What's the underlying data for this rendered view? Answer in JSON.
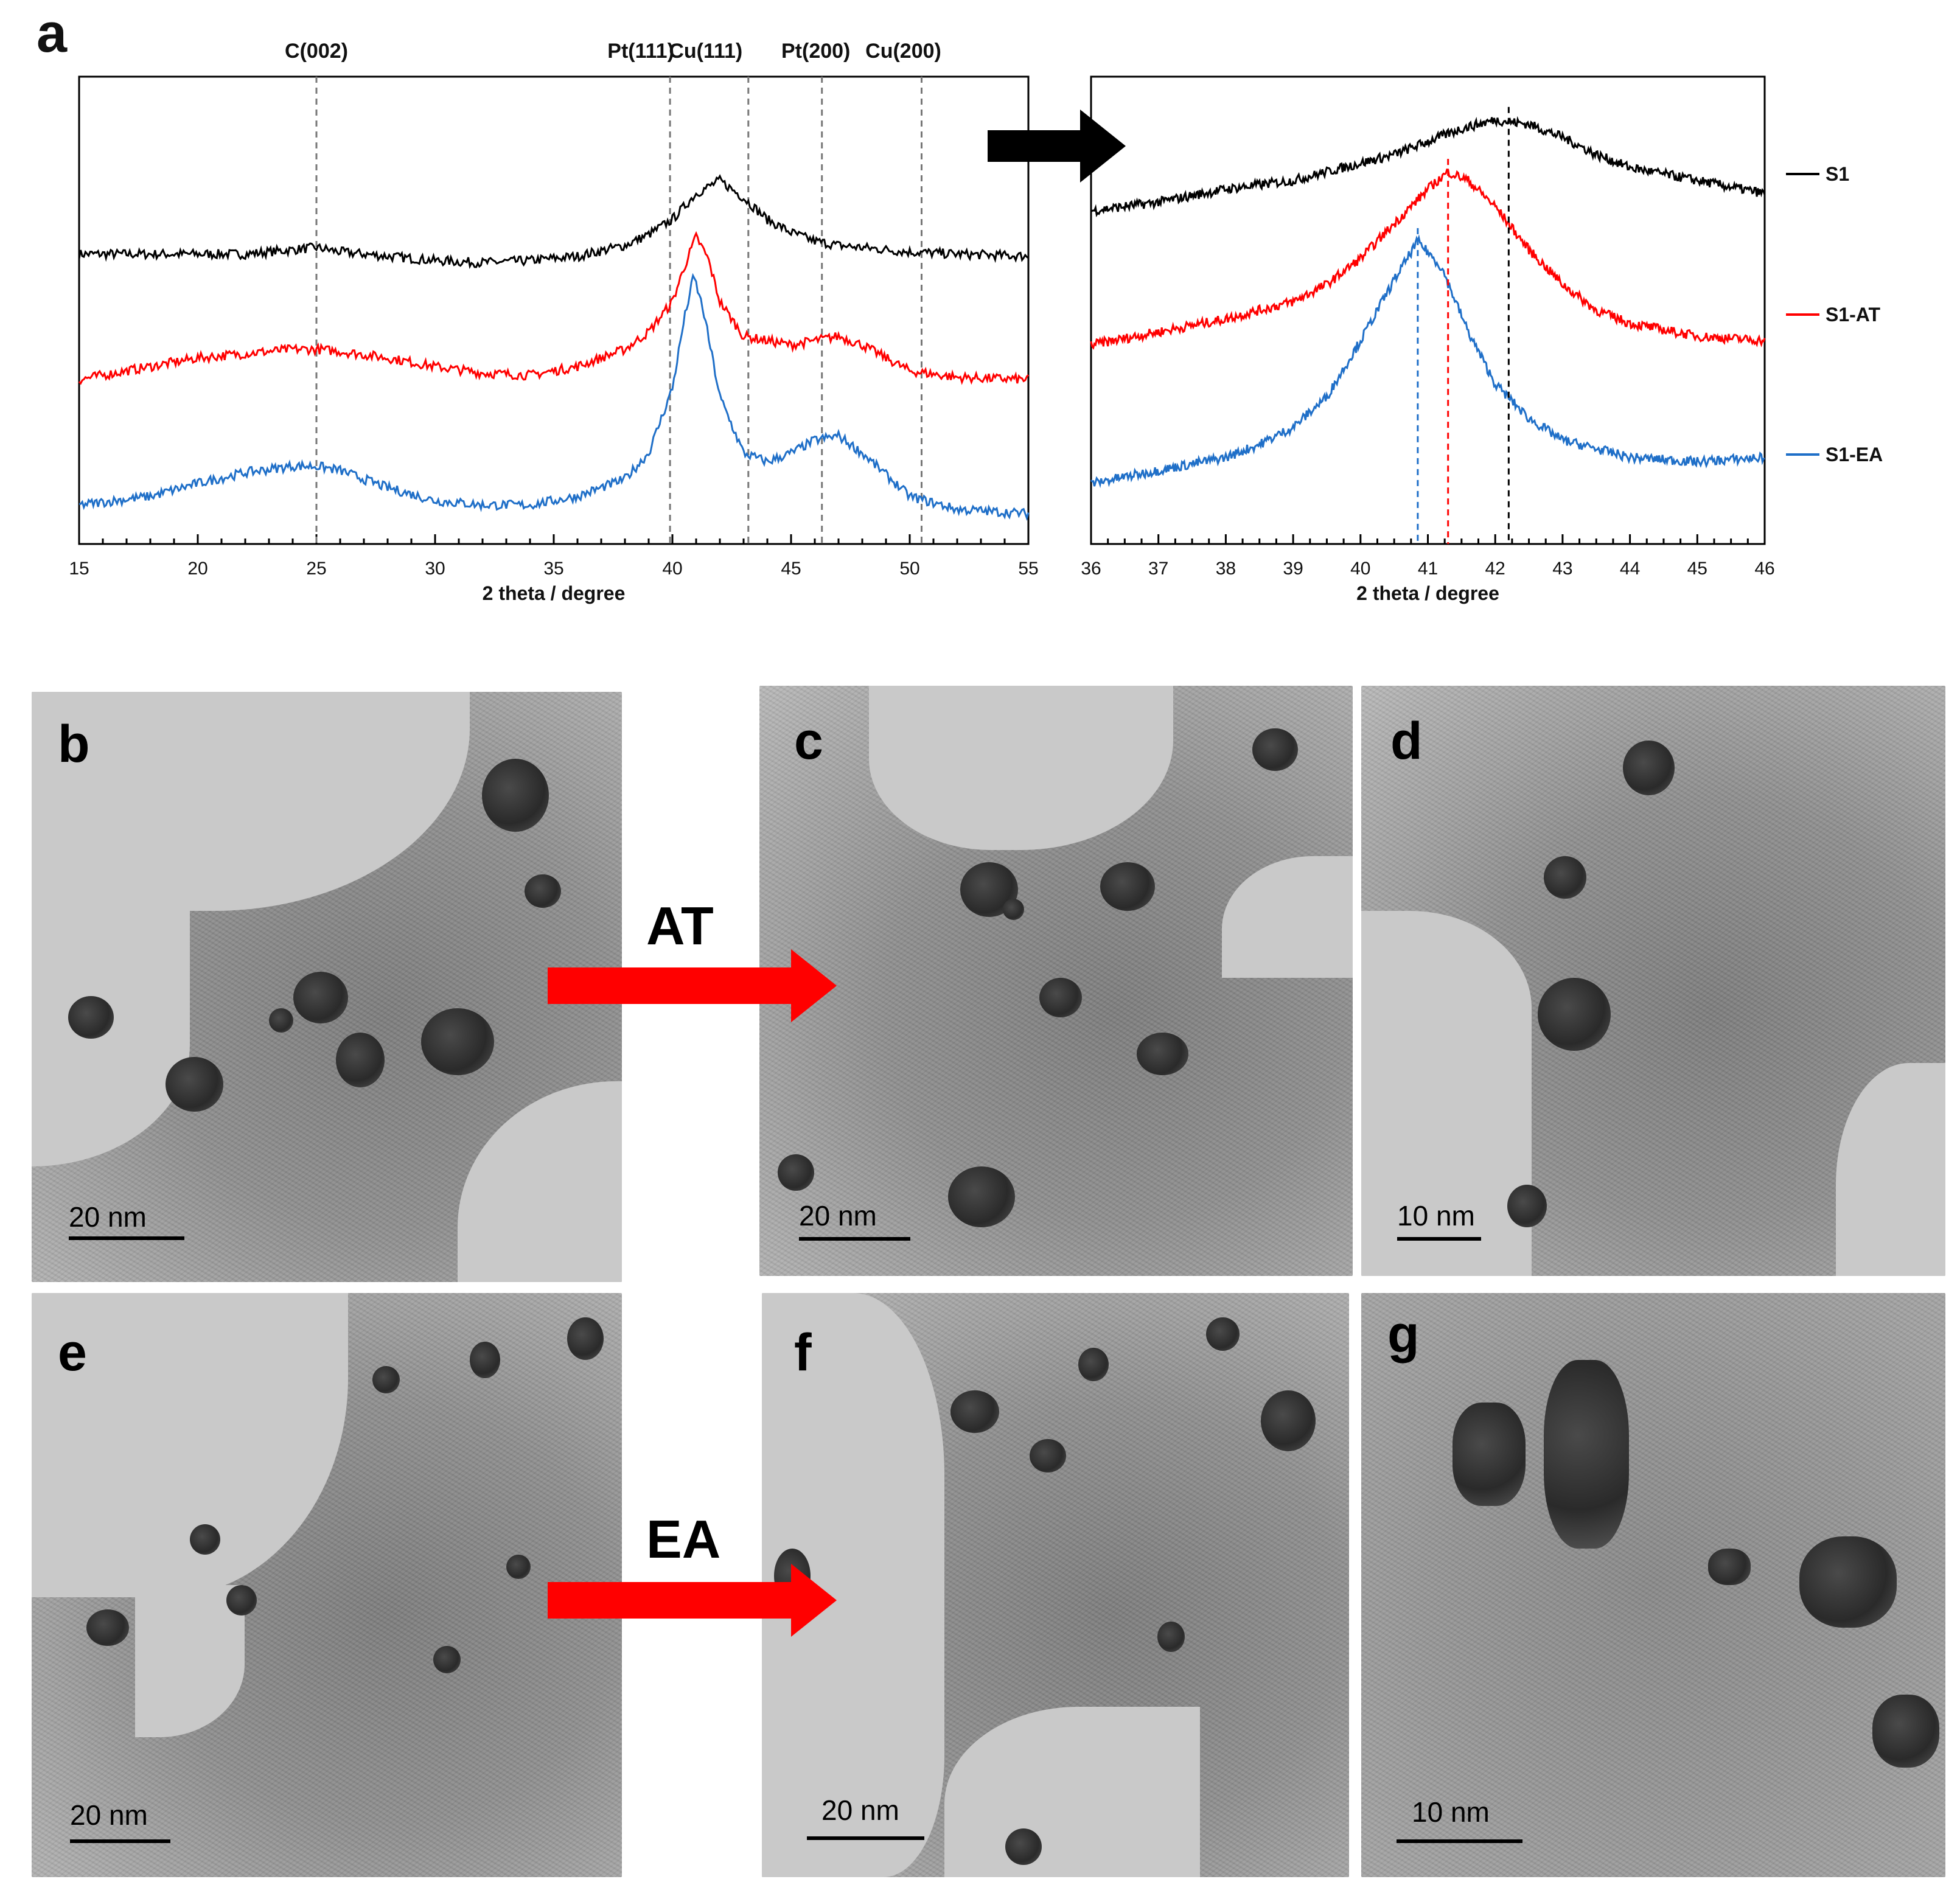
{
  "panel_labels": {
    "a": "a",
    "b": "b",
    "c": "c",
    "d": "d",
    "e": "e",
    "f": "f",
    "g": "g"
  },
  "peak_labels": [
    "C(002)",
    "Pt(111)",
    "Cu(111)",
    "Pt(200)",
    "Cu(200)"
  ],
  "processes": {
    "acid_treatment": "AT",
    "electrochemical_activation": "EA"
  },
  "colors": {
    "S1": "#000000",
    "S1-AT": "#ff0000",
    "S1-EA": "#1f6fc8",
    "ref_line": "#777777",
    "process_arrow": "#ff0000",
    "big_arrow": "#000000"
  },
  "chart_data": [
    {
      "type": "line",
      "panel": "a-left",
      "xlabel": "2 theta / degree",
      "ylabel": "",
      "xlim": [
        15,
        55
      ],
      "xticks": [
        15,
        20,
        25,
        30,
        35,
        40,
        45,
        50,
        55
      ],
      "reference_lines": [
        {
          "label": "C(002)",
          "x": 25.0
        },
        {
          "label": "Pt(111)",
          "x": 39.9
        },
        {
          "label": "Cu(111)",
          "x": 43.2
        },
        {
          "label": "Pt(200)",
          "x": 46.3
        },
        {
          "label": "Cu(200)",
          "x": 50.5
        }
      ],
      "series": [
        {
          "name": "S1",
          "x": [
            15,
            18,
            20,
            22,
            24,
            25,
            26,
            28,
            30,
            32,
            34,
            36,
            38,
            39,
            40,
            41,
            42,
            43,
            44,
            45,
            46,
            47,
            48,
            50,
            52,
            55
          ],
          "y": [
            0.63,
            0.63,
            0.63,
            0.63,
            0.64,
            0.645,
            0.635,
            0.625,
            0.615,
            0.61,
            0.615,
            0.625,
            0.65,
            0.675,
            0.71,
            0.77,
            0.8,
            0.76,
            0.71,
            0.68,
            0.66,
            0.65,
            0.645,
            0.635,
            0.63,
            0.625
          ]
        },
        {
          "name": "S1-AT",
          "x": [
            15,
            18,
            20,
            22,
            24,
            25,
            26,
            28,
            30,
            32,
            34,
            36,
            38,
            39,
            40,
            40.5,
            41,
            41.5,
            42,
            43,
            44,
            45,
            46,
            47,
            48,
            50,
            52,
            55
          ],
          "y": [
            0.34,
            0.37,
            0.39,
            0.4,
            0.41,
            0.41,
            0.405,
            0.39,
            0.37,
            0.355,
            0.35,
            0.37,
            0.41,
            0.45,
            0.52,
            0.6,
            0.67,
            0.62,
            0.52,
            0.44,
            0.43,
            0.42,
            0.43,
            0.44,
            0.42,
            0.36,
            0.345,
            0.34
          ]
        },
        {
          "name": "S1-EA",
          "x": [
            15,
            18,
            20,
            22,
            24,
            25,
            26,
            28,
            30,
            32,
            34,
            36,
            38,
            39,
            40,
            40.5,
            40.9,
            41.3,
            42,
            43,
            44,
            45,
            46,
            47,
            48,
            50,
            52,
            55
          ],
          "y": [
            0.05,
            0.07,
            0.1,
            0.125,
            0.14,
            0.14,
            0.13,
            0.09,
            0.06,
            0.05,
            0.05,
            0.07,
            0.11,
            0.17,
            0.32,
            0.48,
            0.58,
            0.5,
            0.3,
            0.17,
            0.15,
            0.17,
            0.2,
            0.21,
            0.17,
            0.07,
            0.04,
            0.03
          ]
        }
      ]
    },
    {
      "type": "line",
      "panel": "a-right",
      "xlabel": "2 theta / degree",
      "ylabel": "",
      "xlim": [
        36,
        46
      ],
      "xticks": [
        36,
        37,
        38,
        39,
        40,
        41,
        42,
        43,
        44,
        45,
        46
      ],
      "peak_markers": [
        {
          "series": "S1",
          "x": 42.2
        },
        {
          "series": "S1-AT",
          "x": 41.3
        },
        {
          "series": "S1-EA",
          "x": 40.85
        }
      ],
      "series": [
        {
          "name": "S1",
          "x": [
            36,
            37,
            38,
            39,
            39.5,
            40,
            40.5,
            41,
            41.5,
            42,
            42.5,
            43,
            43.5,
            44,
            45,
            46
          ],
          "y": [
            0.73,
            0.75,
            0.78,
            0.8,
            0.82,
            0.84,
            0.86,
            0.89,
            0.92,
            0.94,
            0.93,
            0.9,
            0.86,
            0.83,
            0.8,
            0.77
          ]
        },
        {
          "name": "S1-AT",
          "x": [
            36,
            37,
            38,
            39,
            39.5,
            40,
            40.5,
            41,
            41.3,
            41.6,
            42,
            42.5,
            43,
            43.5,
            44,
            45,
            46
          ],
          "y": [
            0.42,
            0.45,
            0.48,
            0.52,
            0.56,
            0.62,
            0.7,
            0.78,
            0.82,
            0.8,
            0.74,
            0.64,
            0.56,
            0.5,
            0.47,
            0.44,
            0.43
          ]
        },
        {
          "name": "S1-EA",
          "x": [
            36,
            37,
            38,
            38.5,
            39,
            39.5,
            40,
            40.5,
            40.85,
            41.2,
            41.6,
            42,
            42.5,
            43,
            44,
            45,
            46
          ],
          "y": [
            0.1,
            0.13,
            0.16,
            0.19,
            0.23,
            0.3,
            0.43,
            0.57,
            0.66,
            0.6,
            0.45,
            0.33,
            0.25,
            0.2,
            0.16,
            0.15,
            0.16
          ]
        }
      ],
      "legend": [
        "S1",
        "S1-AT",
        "S1-EA"
      ],
      "legend_position": "right"
    }
  ],
  "tem_panels": [
    {
      "id": "b",
      "letter": "b",
      "scale_label": "20 nm"
    },
    {
      "id": "c",
      "letter": "c",
      "scale_label": "20 nm"
    },
    {
      "id": "d",
      "letter": "d",
      "scale_label": "10 nm"
    },
    {
      "id": "e",
      "letter": "e",
      "scale_label": "20 nm"
    },
    {
      "id": "f",
      "letter": "f",
      "scale_label": "20 nm"
    },
    {
      "id": "g",
      "letter": "g",
      "scale_label": "10 nm"
    }
  ]
}
